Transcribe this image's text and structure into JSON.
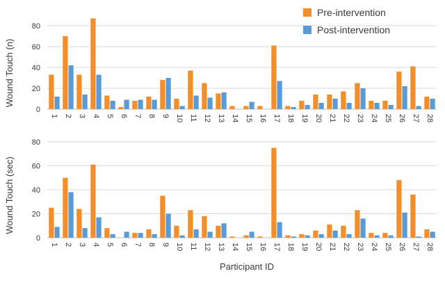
{
  "legend": {
    "position": "top-right",
    "items": [
      {
        "label": "Pre-intervention",
        "color": "#F28E2B"
      },
      {
        "label": "Post-intervention",
        "color": "#5B9BD5"
      }
    ]
  },
  "xlabel": "Participant ID",
  "chart_data": [
    {
      "type": "bar",
      "ylabel": "Wound Touch (n)",
      "ylim": [
        0,
        80
      ],
      "yticks": [
        0,
        20,
        40,
        60,
        80
      ],
      "grid": true,
      "categories": [
        "1",
        "2",
        "3",
        "4",
        "5",
        "6",
        "7",
        "8",
        "9",
        "10",
        "11",
        "12",
        "13",
        "14",
        "15",
        "16",
        "17",
        "18",
        "19",
        "20",
        "21",
        "22",
        "23",
        "24",
        "25",
        "26",
        "27",
        "28"
      ],
      "series": [
        {
          "name": "Pre-intervention",
          "color": "#F28E2B",
          "values": [
            33,
            70,
            33,
            87,
            13,
            2,
            8,
            12,
            28,
            10,
            37,
            25,
            15,
            3,
            3,
            3,
            61,
            3,
            8,
            14,
            14,
            17,
            25,
            8,
            8,
            36,
            41,
            12
          ]
        },
        {
          "name": "Post-intervention",
          "color": "#5B9BD5",
          "values": [
            12,
            42,
            14,
            33,
            8,
            9,
            9,
            9,
            30,
            3,
            13,
            11,
            16,
            0,
            7,
            0,
            27,
            2,
            4,
            6,
            10,
            6,
            20,
            6,
            4,
            22,
            3,
            10
          ]
        }
      ]
    },
    {
      "type": "bar",
      "ylabel": "Wound Touch (sec)",
      "ylim": [
        0,
        80
      ],
      "yticks": [
        0,
        20,
        40,
        60,
        80
      ],
      "grid": true,
      "categories": [
        "1",
        "2",
        "3",
        "4",
        "5",
        "6",
        "7",
        "8",
        "9",
        "10",
        "11",
        "12",
        "13",
        "14",
        "15",
        "16",
        "17",
        "18",
        "19",
        "20",
        "21",
        "22",
        "23",
        "24",
        "25",
        "26",
        "27",
        "28"
      ],
      "series": [
        {
          "name": "Pre-intervention",
          "color": "#F28E2B",
          "values": [
            25,
            50,
            24,
            61,
            8,
            0,
            4,
            7,
            35,
            10,
            23,
            18,
            10,
            1,
            2,
            1,
            75,
            2,
            3,
            6,
            11,
            10,
            23,
            4,
            4,
            48,
            36,
            7
          ]
        },
        {
          "name": "Post-intervention",
          "color": "#5B9BD5",
          "values": [
            9,
            38,
            8,
            17,
            3,
            5,
            4,
            3,
            20,
            2,
            7,
            5,
            12,
            0,
            5,
            0,
            13,
            1,
            2,
            3,
            6,
            3,
            16,
            2,
            2,
            21,
            1,
            5
          ]
        }
      ]
    }
  ]
}
